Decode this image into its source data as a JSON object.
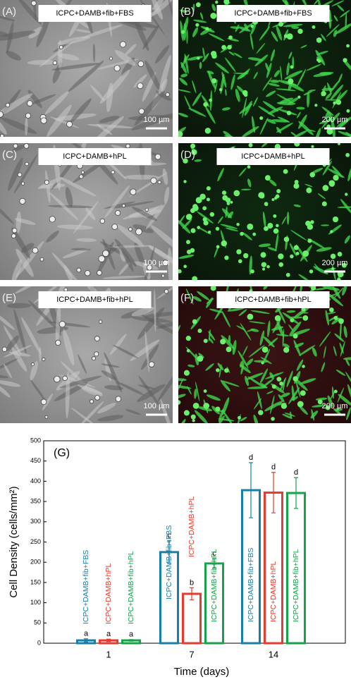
{
  "panels": [
    {
      "label": "(A)",
      "caption": "ICPC+DAMB+fib+FBS",
      "scale": "100 µm",
      "kind": "phase"
    },
    {
      "label": "(B)",
      "caption": "ICPC+DAMB+fib+FBS",
      "scale": "200 µm",
      "kind": "fluor"
    },
    {
      "label": "(C)",
      "caption": "ICPC+DAMB+hPL",
      "scale": "100 µm",
      "kind": "phase"
    },
    {
      "label": "(D)",
      "caption": "ICPC+DAMB+hPL",
      "scale": "200 µm",
      "kind": "fluor"
    },
    {
      "label": "(E)",
      "caption": "ICPC+DAMB+fib+hPL",
      "scale": "100 µm",
      "kind": "phase"
    },
    {
      "label": "(F)",
      "caption": "ICPC+DAMB+fib+hPL",
      "scale": "200 µm",
      "kind": "fluor"
    }
  ],
  "chart_data": {
    "type": "bar",
    "label": "(G)",
    "y_label": "Cell Density (cells/mm²)",
    "x_label": "Time (days)",
    "categories": [
      "1",
      "7",
      "14"
    ],
    "series": [
      {
        "name": "ICPC+DAMB+fib+FBS",
        "color": "#1a7ea8",
        "values": [
          7,
          225,
          378
        ],
        "errors": [
          4,
          28,
          68
        ],
        "letters": [
          "a",
          "c",
          "d"
        ]
      },
      {
        "name": "ICPC+DAMB+hPL",
        "color": "#e63b2e",
        "values": [
          7,
          122,
          372
        ],
        "errors": [
          3,
          15,
          50
        ],
        "letters": [
          "a",
          "b",
          "d"
        ]
      },
      {
        "name": "ICPC+DAMB+fib+hPL",
        "color": "#16a34a",
        "values": [
          7,
          197,
          371
        ],
        "errors": [
          2,
          12,
          38
        ],
        "letters": [
          "a",
          "c",
          "d"
        ]
      }
    ],
    "ylim": [
      0,
      500
    ],
    "yticks": [
      0,
      50,
      100,
      150,
      200,
      250,
      300,
      350,
      400,
      450,
      500
    ]
  }
}
